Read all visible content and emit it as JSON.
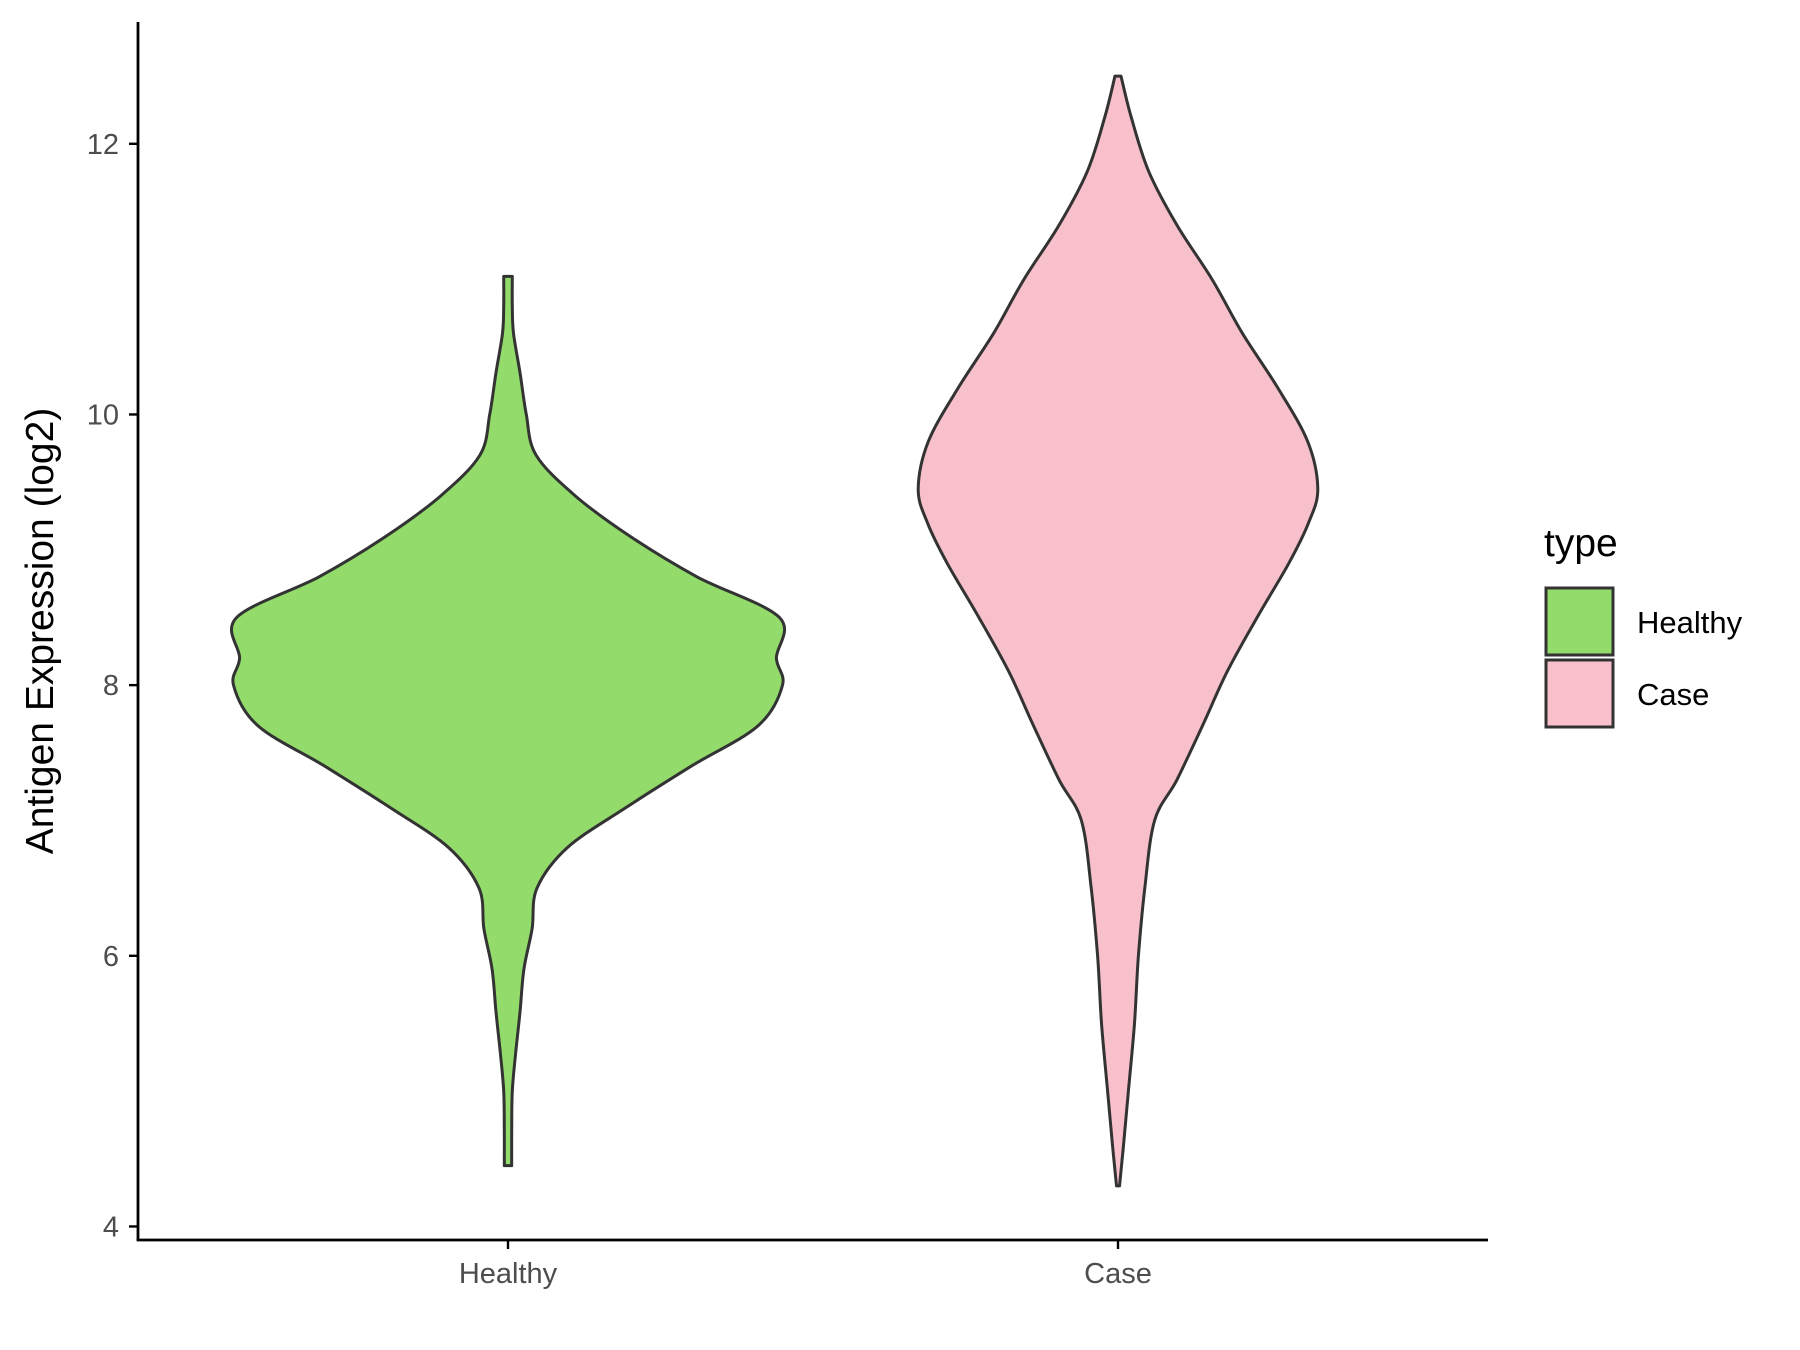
{
  "chart_data": {
    "type": "violin",
    "title": "",
    "xlabel": "",
    "ylabel": "Antigen Expression (log2)",
    "ylim": [
      3.9,
      12.9
    ],
    "yticks": [
      4,
      6,
      8,
      10,
      12
    ],
    "categories": [
      "Healthy",
      "Case"
    ],
    "grid": false,
    "legend": {
      "title": "type",
      "position": "right",
      "entries": [
        {
          "label": "Healthy",
          "color": "#93db6b"
        },
        {
          "label": "Case",
          "color": "#f8c0cb"
        }
      ]
    },
    "series": [
      {
        "category": "Healthy",
        "color": "#93db6b",
        "ymin": 4.45,
        "ymax": 11.02,
        "density_profile": [
          [
            4.45,
            0.012
          ],
          [
            4.7,
            0.012
          ],
          [
            5.0,
            0.014
          ],
          [
            5.3,
            0.026
          ],
          [
            5.6,
            0.04
          ],
          [
            5.9,
            0.052
          ],
          [
            6.2,
            0.079
          ],
          [
            6.5,
            0.095
          ],
          [
            6.8,
            0.195
          ],
          [
            7.1,
            0.39
          ],
          [
            7.4,
            0.6
          ],
          [
            7.7,
            0.82
          ],
          [
            8.0,
            0.9
          ],
          [
            8.2,
            0.88
          ],
          [
            8.5,
            0.89
          ],
          [
            8.8,
            0.62
          ],
          [
            9.1,
            0.4
          ],
          [
            9.4,
            0.22
          ],
          [
            9.7,
            0.092
          ],
          [
            10.0,
            0.06
          ],
          [
            10.3,
            0.04
          ],
          [
            10.6,
            0.018
          ],
          [
            10.8,
            0.014
          ],
          [
            11.02,
            0.014
          ]
        ]
      },
      {
        "category": "Case",
        "color": "#f8c0cb",
        "ymin": 4.3,
        "ymax": 12.5,
        "density_profile": [
          [
            4.3,
            0.005
          ],
          [
            4.6,
            0.018
          ],
          [
            5.0,
            0.034
          ],
          [
            5.5,
            0.054
          ],
          [
            6.0,
            0.067
          ],
          [
            6.5,
            0.088
          ],
          [
            7.0,
            0.12
          ],
          [
            7.3,
            0.193
          ],
          [
            7.7,
            0.277
          ],
          [
            8.1,
            0.358
          ],
          [
            8.5,
            0.456
          ],
          [
            8.9,
            0.56
          ],
          [
            9.2,
            0.625
          ],
          [
            9.45,
            0.655
          ],
          [
            9.8,
            0.622
          ],
          [
            10.2,
            0.523
          ],
          [
            10.6,
            0.408
          ],
          [
            11.0,
            0.308
          ],
          [
            11.4,
            0.193
          ],
          [
            11.8,
            0.1
          ],
          [
            12.2,
            0.043
          ],
          [
            12.5,
            0.01
          ]
        ]
      }
    ]
  }
}
